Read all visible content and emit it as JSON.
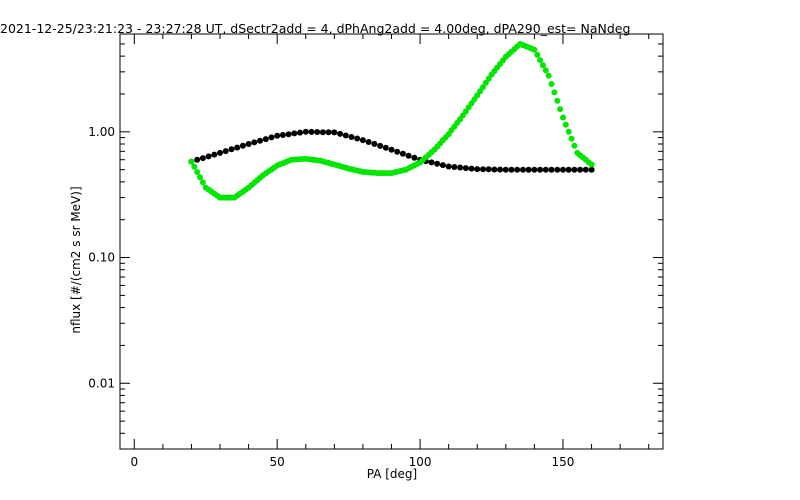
{
  "chart_data": {
    "type": "scatter",
    "title": "2021-12-25/23:21:23 - 23:27:28 UT, dSectr2add = 4, dPhAng2add = 4.00deg, dPA290_est=    NaNdeg",
    "xlabel": "PA [deg]",
    "ylabel": "nflux [#/(cm2 s sr MeV)]",
    "xlim": [
      -5,
      185
    ],
    "ylim": [
      0.003,
      6
    ],
    "yscale": "log",
    "grid": false,
    "legend": "none",
    "xticks": {
      "values": [
        0,
        50,
        100,
        150
      ],
      "labels": [
        "0",
        "50",
        "100",
        "150"
      ]
    },
    "yticks": {
      "values": [
        0.01,
        0.1,
        1
      ],
      "labels": [
        "0.01",
        "0.10",
        "1.00"
      ]
    },
    "series": [
      {
        "color": "#000000",
        "x": [
          20,
          30,
          40,
          50,
          60,
          70,
          80,
          90,
          100,
          110,
          120,
          130,
          140,
          150,
          160
        ],
        "y": [
          0.58,
          0.68,
          0.8,
          0.93,
          1.0,
          0.99,
          0.86,
          0.72,
          0.6,
          0.53,
          0.505,
          0.5,
          0.5,
          0.5,
          0.5
        ]
      },
      {
        "color": "#00e600",
        "x": [
          20,
          25,
          30,
          35,
          40,
          45,
          50,
          55,
          60,
          65,
          70,
          75,
          80,
          85,
          90,
          95,
          100,
          105,
          110,
          115,
          120,
          125,
          130,
          135,
          140,
          145,
          150,
          155,
          160
        ],
        "y": [
          0.58,
          0.36,
          0.3,
          0.3,
          0.36,
          0.45,
          0.54,
          0.6,
          0.61,
          0.59,
          0.55,
          0.51,
          0.48,
          0.47,
          0.47,
          0.5,
          0.57,
          0.72,
          0.96,
          1.35,
          1.95,
          2.85,
          3.95,
          5.0,
          4.5,
          2.8,
          1.3,
          0.68,
          0.55
        ]
      }
    ]
  }
}
